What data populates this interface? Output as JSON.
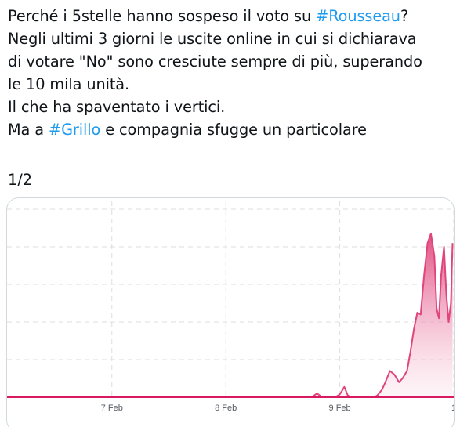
{
  "tweet": {
    "lines": [
      {
        "before": "Perché i 5stelle hanno sospeso il voto su ",
        "hashtag": "#Rousseau",
        "after": "?"
      },
      {
        "text": "Negli ultimi 3 giorni le uscite online in cui si dichiarava"
      },
      {
        "text": "di votare \"No\" sono cresciute sempre di più, superando"
      },
      {
        "text": "le 10 mila unità."
      },
      {
        "text": "Il che ha spaventato i vertici."
      },
      {
        "before": "Ma a ",
        "hashtag": "#Grillo",
        "after": " e compagnia sfugge un particolare"
      }
    ],
    "page_counter": "1/2"
  },
  "colors": {
    "hashtag": "#1d9bf0",
    "line": "#e0457b",
    "area_top": "#e0457b",
    "area_bottom": "#fbe3ec",
    "grid": "#dddddd",
    "baseline": "#d81b60"
  },
  "chart_data": {
    "type": "area",
    "x_tick_labels": [
      "7 Feb",
      "8 Feb",
      "9 Feb",
      "1"
    ],
    "x_ticks": [
      7,
      8,
      9,
      10
    ],
    "xlim": [
      6.08,
      10.0
    ],
    "ylim": [
      0,
      100
    ],
    "grid": true,
    "gridlines_y": [
      20,
      40,
      60,
      80,
      100
    ],
    "legend": "none",
    "series": [
      {
        "values": [
          [
            6.08,
            0
          ],
          [
            8.7,
            0
          ],
          [
            8.76,
            0.3
          ],
          [
            8.8,
            2
          ],
          [
            8.84,
            0.3
          ],
          [
            8.88,
            0
          ],
          [
            8.96,
            0
          ],
          [
            9.0,
            1.5
          ],
          [
            9.04,
            5.5
          ],
          [
            9.07,
            1
          ],
          [
            9.1,
            0
          ],
          [
            9.3,
            0
          ],
          [
            9.33,
            1
          ],
          [
            9.37,
            4
          ],
          [
            9.4,
            8
          ],
          [
            9.44,
            14
          ],
          [
            9.48,
            12
          ],
          [
            9.52,
            8
          ],
          [
            9.55,
            10
          ],
          [
            9.59,
            14
          ],
          [
            9.62,
            24
          ],
          [
            9.65,
            36
          ],
          [
            9.68,
            45
          ],
          [
            9.71,
            44
          ],
          [
            9.74,
            65
          ],
          [
            9.77,
            82
          ],
          [
            9.8,
            87
          ],
          [
            9.83,
            75
          ],
          [
            9.85,
            47
          ],
          [
            9.87,
            42
          ],
          [
            9.89,
            65
          ],
          [
            9.915,
            80
          ],
          [
            9.935,
            55
          ],
          [
            9.955,
            40
          ],
          [
            9.975,
            50
          ],
          [
            9.99,
            82
          ]
        ]
      }
    ]
  }
}
